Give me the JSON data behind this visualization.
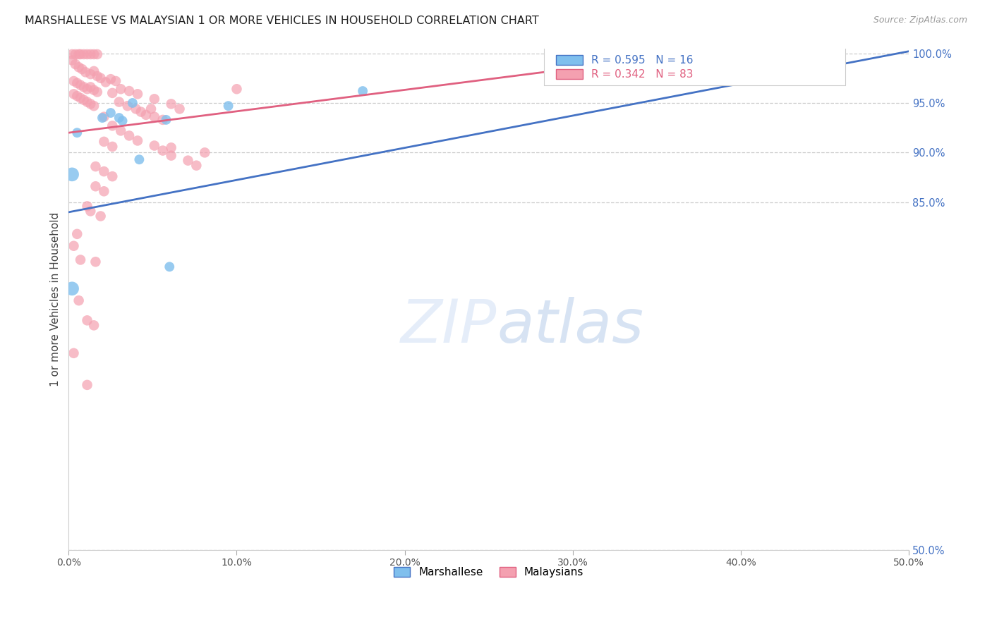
{
  "title": "MARSHALLESE VS MALAYSIAN 1 OR MORE VEHICLES IN HOUSEHOLD CORRELATION CHART",
  "source": "Source: ZipAtlas.com",
  "ylabel": "1 or more Vehicles in Household",
  "xlim": [
    0.0,
    0.5
  ],
  "ylim": [
    0.5,
    1.005
  ],
  "ytick_values": [
    0.5,
    0.85,
    0.9,
    0.95,
    1.0
  ],
  "xtick_values": [
    0.0,
    0.1,
    0.2,
    0.3,
    0.4,
    0.5
  ],
  "legend_blue_label": "Marshallese",
  "legend_pink_label": "Malaysians",
  "R_blue": 0.595,
  "N_blue": 16,
  "R_pink": 0.342,
  "N_pink": 83,
  "blue_color": "#7fbfed",
  "pink_color": "#f4a0b0",
  "blue_line_color": "#4472c4",
  "pink_line_color": "#e06080",
  "blue_line": [
    [
      0.0,
      0.84
    ],
    [
      0.5,
      1.002
    ]
  ],
  "pink_line": [
    [
      0.0,
      0.92
    ],
    [
      0.38,
      1.002
    ]
  ],
  "blue_scatter": [
    [
      0.002,
      0.878
    ],
    [
      0.002,
      0.763
    ],
    [
      0.005,
      0.92
    ],
    [
      0.02,
      0.935
    ],
    [
      0.025,
      0.94
    ],
    [
      0.03,
      0.935
    ],
    [
      0.032,
      0.932
    ],
    [
      0.038,
      0.95
    ],
    [
      0.042,
      0.893
    ],
    [
      0.058,
      0.933
    ],
    [
      0.06,
      0.785
    ],
    [
      0.095,
      0.947
    ],
    [
      0.175,
      0.962
    ],
    [
      0.45,
      1.0
    ]
  ],
  "blue_scatter_sizes": [
    200,
    200,
    100,
    100,
    100,
    100,
    100,
    100,
    100,
    100,
    100,
    100,
    100,
    130
  ],
  "pink_scatter": [
    [
      0.002,
      0.999
    ],
    [
      0.004,
      0.999
    ],
    [
      0.006,
      0.999
    ],
    [
      0.007,
      0.999
    ],
    [
      0.009,
      0.999
    ],
    [
      0.011,
      0.999
    ],
    [
      0.013,
      0.999
    ],
    [
      0.015,
      0.999
    ],
    [
      0.017,
      0.999
    ],
    [
      0.002,
      0.993
    ],
    [
      0.004,
      0.989
    ],
    [
      0.006,
      0.986
    ],
    [
      0.008,
      0.984
    ],
    [
      0.01,
      0.981
    ],
    [
      0.013,
      0.979
    ],
    [
      0.015,
      0.982
    ],
    [
      0.017,
      0.977
    ],
    [
      0.019,
      0.975
    ],
    [
      0.003,
      0.972
    ],
    [
      0.005,
      0.97
    ],
    [
      0.007,
      0.968
    ],
    [
      0.009,
      0.966
    ],
    [
      0.011,
      0.964
    ],
    [
      0.013,
      0.966
    ],
    [
      0.015,
      0.963
    ],
    [
      0.017,
      0.961
    ],
    [
      0.003,
      0.959
    ],
    [
      0.005,
      0.957
    ],
    [
      0.007,
      0.955
    ],
    [
      0.009,
      0.953
    ],
    [
      0.011,
      0.951
    ],
    [
      0.013,
      0.949
    ],
    [
      0.015,
      0.947
    ],
    [
      0.022,
      0.971
    ],
    [
      0.025,
      0.974
    ],
    [
      0.028,
      0.972
    ],
    [
      0.026,
      0.96
    ],
    [
      0.03,
      0.951
    ],
    [
      0.035,
      0.947
    ],
    [
      0.04,
      0.944
    ],
    [
      0.043,
      0.941
    ],
    [
      0.046,
      0.938
    ],
    [
      0.049,
      0.944
    ],
    [
      0.051,
      0.936
    ],
    [
      0.056,
      0.933
    ],
    [
      0.031,
      0.964
    ],
    [
      0.036,
      0.962
    ],
    [
      0.041,
      0.959
    ],
    [
      0.051,
      0.954
    ],
    [
      0.061,
      0.949
    ],
    [
      0.066,
      0.944
    ],
    [
      0.021,
      0.936
    ],
    [
      0.026,
      0.927
    ],
    [
      0.031,
      0.922
    ],
    [
      0.036,
      0.917
    ],
    [
      0.041,
      0.912
    ],
    [
      0.051,
      0.907
    ],
    [
      0.056,
      0.902
    ],
    [
      0.061,
      0.897
    ],
    [
      0.071,
      0.892
    ],
    [
      0.076,
      0.887
    ],
    [
      0.021,
      0.911
    ],
    [
      0.026,
      0.906
    ],
    [
      0.016,
      0.886
    ],
    [
      0.021,
      0.881
    ],
    [
      0.026,
      0.876
    ],
    [
      0.016,
      0.866
    ],
    [
      0.021,
      0.861
    ],
    [
      0.011,
      0.846
    ],
    [
      0.013,
      0.841
    ],
    [
      0.019,
      0.836
    ],
    [
      0.005,
      0.818
    ],
    [
      0.003,
      0.806
    ],
    [
      0.007,
      0.792
    ],
    [
      0.016,
      0.79
    ],
    [
      0.006,
      0.751
    ],
    [
      0.011,
      0.731
    ],
    [
      0.015,
      0.726
    ],
    [
      0.003,
      0.698
    ],
    [
      0.011,
      0.666
    ],
    [
      0.061,
      0.905
    ],
    [
      0.081,
      0.9
    ],
    [
      0.1,
      0.964
    ]
  ],
  "pink_scatter_sizes": [
    110,
    110,
    110,
    110,
    110,
    110,
    110,
    110,
    110,
    110,
    110,
    110,
    110,
    110,
    110,
    110,
    110,
    110,
    110,
    110,
    110,
    110,
    110,
    110,
    110,
    110,
    110,
    110,
    110,
    110,
    110,
    110,
    110,
    110,
    110,
    110,
    110,
    110,
    110,
    110,
    110,
    110,
    110,
    110,
    110,
    110,
    110,
    110,
    110,
    110,
    110,
    110,
    110,
    110,
    110,
    110,
    110,
    110,
    110,
    110,
    110,
    110,
    110,
    110,
    110,
    110,
    110,
    110,
    110,
    110,
    110,
    110,
    110,
    110,
    110,
    110,
    110,
    110,
    110,
    110,
    110,
    110,
    110
  ]
}
